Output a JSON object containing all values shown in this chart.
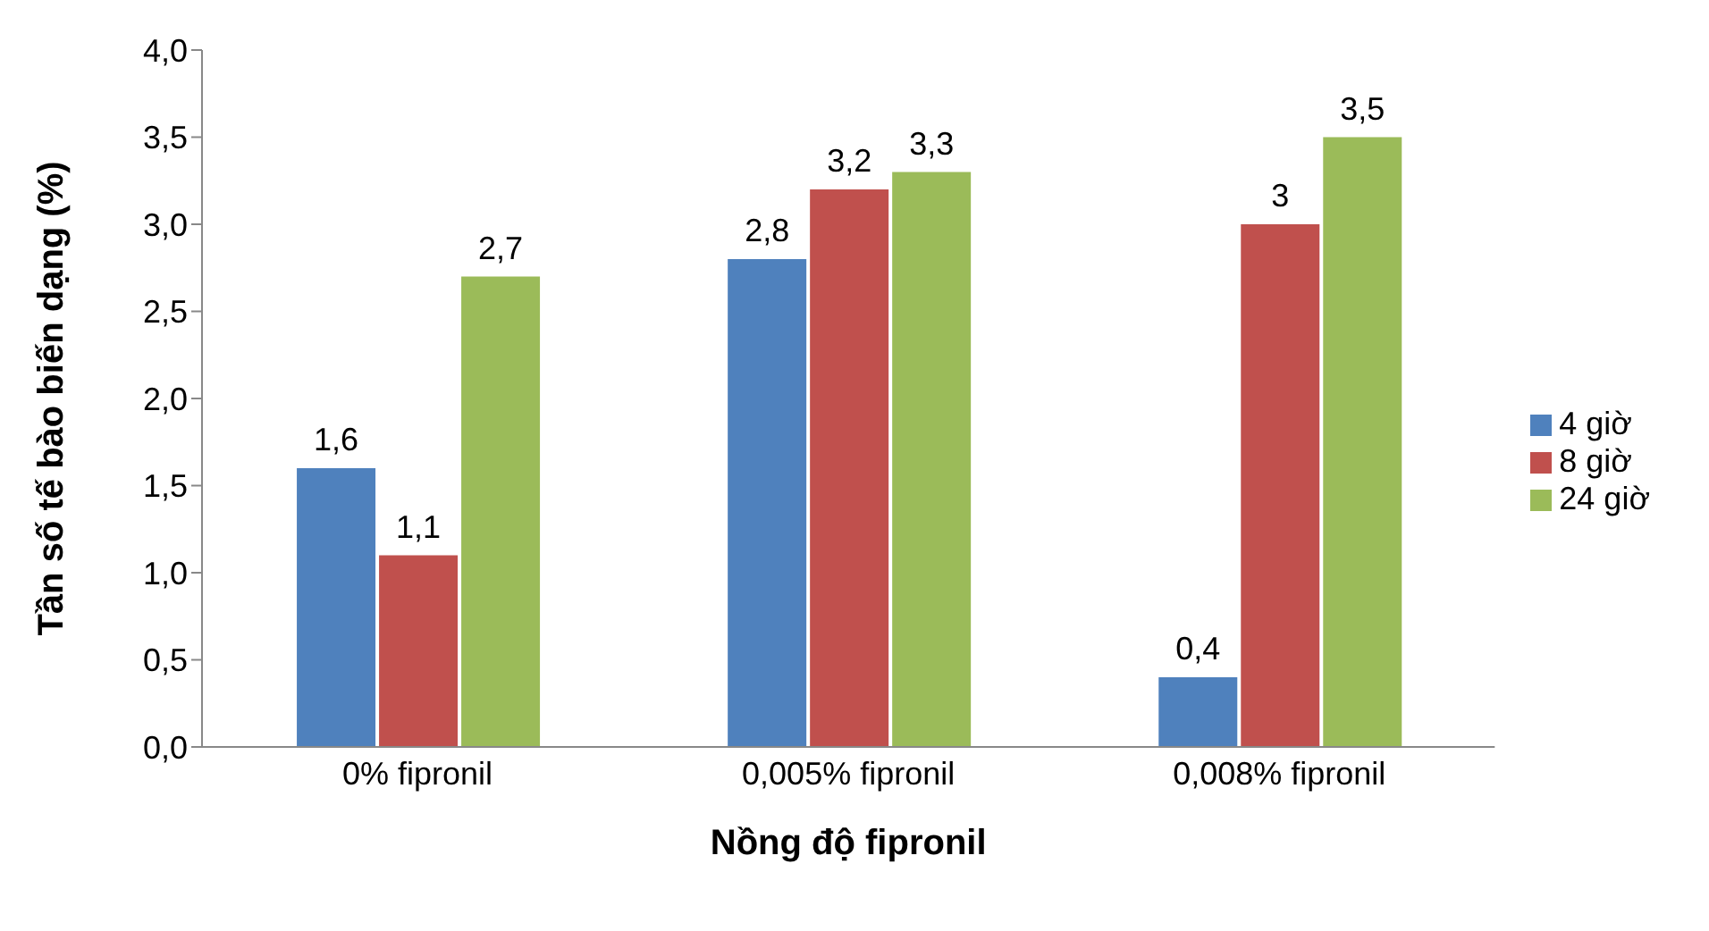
{
  "chart_data": {
    "type": "bar",
    "xlabel": "Nồng độ fipronil",
    "ylabel": "Tần số tế bào biến dạng (%)",
    "categories": [
      "0% fipronil",
      "0,005% fipronil",
      "0,008% fipronil"
    ],
    "series": [
      {
        "name": "4 giờ",
        "color": "#4f81bd",
        "values": [
          1.6,
          2.8,
          0.4
        ],
        "value_labels": [
          "1,6",
          "2,8",
          "0,4"
        ]
      },
      {
        "name": "8 giờ",
        "color": "#c0504d",
        "values": [
          1.1,
          3.2,
          3
        ],
        "value_labels": [
          "1,1",
          "3,2",
          "3"
        ]
      },
      {
        "name": "24 giờ",
        "color": "#9bbb59",
        "values": [
          2.7,
          3.3,
          3.5
        ],
        "value_labels": [
          "2,7",
          "3,3",
          "3,5"
        ]
      }
    ],
    "ylim": [
      0,
      4
    ],
    "yticks": [
      {
        "value": 0,
        "label": "0,0"
      },
      {
        "value": 0.5,
        "label": "0,5"
      },
      {
        "value": 1,
        "label": "1,0"
      },
      {
        "value": 1.5,
        "label": "1,5"
      },
      {
        "value": 2,
        "label": "2,0"
      },
      {
        "value": 2.5,
        "label": "2,5"
      },
      {
        "value": 3,
        "label": "3,0"
      },
      {
        "value": 3.5,
        "label": "3,5"
      },
      {
        "value": 4,
        "label": "4,0"
      }
    ],
    "legend": "right",
    "grid": false
  }
}
